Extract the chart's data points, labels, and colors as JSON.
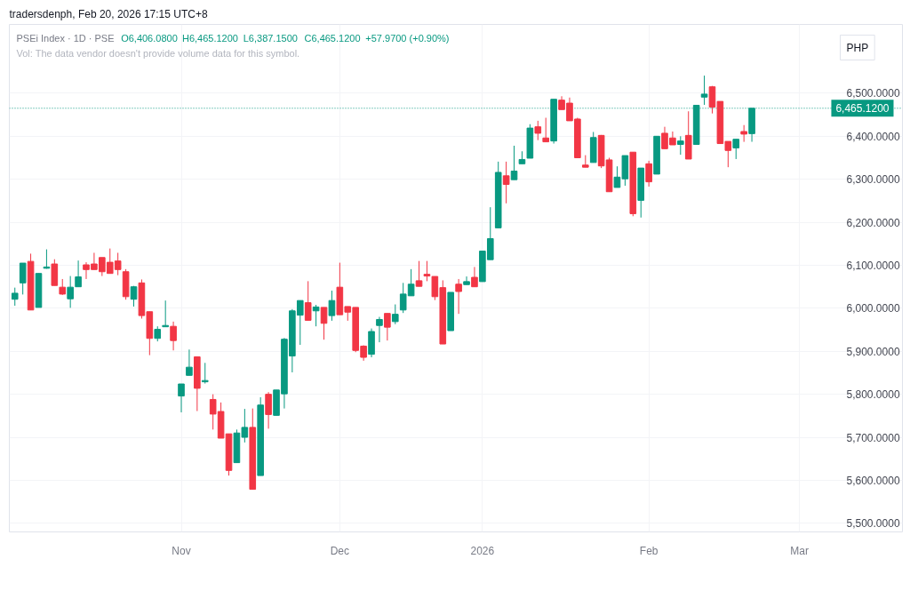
{
  "chart_data": {
    "type": "candlestick",
    "title": "PSEi Index · 1D · PSE",
    "subtitle": "Vol: The data vendor doesn't provide volume data for this symbol.",
    "ylabel": "PHP",
    "annotations": [
      "tradersdenph, Feb 20, 2026 17:15 UTC+8",
      "O6,406.0800",
      "H6,465.1200",
      "L6,387.1500",
      "C6,465.1200",
      "+57.9700 (+0.90%)"
    ],
    "categories": [
      null,
      null,
      null,
      null,
      null,
      null,
      null,
      null,
      null,
      null,
      null,
      null,
      null,
      null,
      null,
      null,
      null,
      null,
      null,
      null,
      null,
      "Nov",
      null,
      null,
      null,
      null,
      null,
      null,
      null,
      null,
      null,
      null,
      null,
      null,
      null,
      null,
      null,
      null,
      null,
      null,
      null,
      "Dec",
      null,
      null,
      null,
      null,
      null,
      null,
      null,
      null,
      null,
      null,
      null,
      null,
      null,
      null,
      null,
      null,
      null,
      "2026",
      null,
      null,
      null,
      null,
      null,
      null,
      null,
      null,
      null,
      null,
      null,
      null,
      null,
      null,
      null,
      null,
      null,
      null,
      null,
      null,
      "Feb",
      null,
      null,
      null,
      null,
      null,
      null,
      null,
      null,
      null,
      null,
      null,
      null,
      null,
      null,
      null,
      null,
      null,
      null,
      "Mar"
    ],
    "ohlc": [
      [
        6021,
        6048,
        6006,
        6035
      ],
      [
        6059,
        6105,
        6032,
        6105
      ],
      [
        6109,
        6127,
        5996,
        5996
      ],
      [
        6002,
        6081,
        6002,
        6081
      ],
      [
        6093,
        6137,
        6092,
        6096
      ],
      [
        6103,
        6114,
        6053,
        6053
      ],
      [
        6049,
        6068,
        6031,
        6033
      ],
      [
        6022,
        6075,
        6001,
        6049
      ],
      [
        6050,
        6111,
        6050,
        6073
      ],
      [
        6101,
        6107,
        6068,
        6090
      ],
      [
        6103,
        6129,
        6090,
        6090
      ],
      [
        6118,
        6118,
        6075,
        6085
      ],
      [
        6107,
        6139,
        6081,
        6081
      ],
      [
        6110,
        6129,
        6077,
        6090
      ],
      [
        6085,
        6091,
        6020,
        6027
      ],
      [
        6021,
        6052,
        6004,
        6050
      ],
      [
        6059,
        6067,
        5976,
        5983
      ],
      [
        5992,
        5992,
        5891,
        5930
      ],
      [
        5930,
        5958,
        5923,
        5951
      ],
      [
        5957,
        6018,
        5957,
        5960
      ],
      [
        5958,
        5969,
        5902,
        5925
      ],
      [
        5796,
        5824,
        5758,
        5824
      ],
      [
        5844,
        5904,
        5844,
        5863
      ],
      [
        5887,
        5887,
        5761,
        5814
      ],
      [
        5829,
        5873,
        5825,
        5832
      ],
      [
        5788,
        5800,
        5718,
        5754
      ],
      [
        5760,
        5781,
        5698,
        5698
      ],
      [
        5708,
        5708,
        5611,
        5623
      ],
      [
        5641,
        5718,
        5641,
        5710
      ],
      [
        5700,
        5766,
        5688,
        5723
      ],
      [
        5723,
        5767,
        5579,
        5579
      ],
      [
        5611,
        5793,
        5611,
        5775
      ],
      [
        5800,
        5805,
        5720,
        5753
      ],
      [
        5751,
        5810,
        5751,
        5810
      ],
      [
        5801,
        5931,
        5767,
        5928
      ],
      [
        5889,
        5998,
        5851,
        5994
      ],
      [
        5984,
        6018,
        5915,
        6018
      ],
      [
        6013,
        6063,
        5972,
        5972
      ],
      [
        5994,
        6008,
        5958,
        6003
      ],
      [
        6002,
        6002,
        5927,
        5965
      ],
      [
        5983,
        6041,
        5971,
        6018
      ],
      [
        6049,
        6106,
        5985,
        5985
      ],
      [
        6004,
        6004,
        5971,
        5991
      ],
      [
        6002,
        6002,
        5898,
        5902
      ],
      [
        5912,
        5914,
        5878,
        5886
      ],
      [
        5893,
        5953,
        5886,
        5946
      ],
      [
        5960,
        5980,
        5921,
        5974
      ],
      [
        5988,
        5988,
        5925,
        5956
      ],
      [
        5969,
        6009,
        5963,
        5986
      ],
      [
        5996,
        6059,
        5989,
        6033
      ],
      [
        6029,
        6091,
        6029,
        6056
      ],
      [
        6064,
        6110,
        6051,
        6051
      ],
      [
        6079,
        6110,
        6063,
        6075
      ],
      [
        6074,
        6074,
        6019,
        6027
      ],
      [
        6048,
        6065,
        5917,
        5917
      ],
      [
        5948,
        6037,
        5948,
        6037
      ],
      [
        6056,
        6068,
        5987,
        6039
      ],
      [
        6055,
        6074,
        6055,
        6062
      ],
      [
        6072,
        6096,
        6050,
        6050
      ],
      [
        6062,
        6134,
        6062,
        6133
      ],
      [
        6113,
        6235,
        6113,
        6162
      ],
      [
        6187,
        6341,
        6187,
        6316
      ],
      [
        6308,
        6341,
        6244,
        6288
      ],
      [
        6299,
        6378,
        6299,
        6319
      ],
      [
        6336,
        6365,
        6336,
        6346
      ],
      [
        6349,
        6428,
        6349,
        6419
      ],
      [
        6422,
        6436,
        6391,
        6407
      ],
      [
        6396,
        6443,
        6387,
        6387
      ],
      [
        6389,
        6486,
        6383,
        6486
      ],
      [
        6484,
        6493,
        6462,
        6462
      ],
      [
        6477,
        6490,
        6436,
        6436
      ],
      [
        6440,
        6443,
        6350,
        6350
      ],
      [
        6333,
        6356,
        6328,
        6328
      ],
      [
        6339,
        6410,
        6339,
        6397
      ],
      [
        6402,
        6403,
        6326,
        6331
      ],
      [
        6345,
        6350,
        6271,
        6271
      ],
      [
        6281,
        6330,
        6281,
        6305
      ],
      [
        6301,
        6355,
        6285,
        6355
      ],
      [
        6363,
        6363,
        6214,
        6220
      ],
      [
        6251,
        6326,
        6211,
        6326
      ],
      [
        6336,
        6343,
        6283,
        6294
      ],
      [
        6312,
        6400,
        6312,
        6400
      ],
      [
        6407,
        6422,
        6371,
        6371
      ],
      [
        6396,
        6411,
        6380,
        6380
      ],
      [
        6381,
        6400,
        6357,
        6389
      ],
      [
        6402,
        6458,
        6347,
        6347
      ],
      [
        6381,
        6472,
        6381,
        6472
      ],
      [
        6491,
        6541,
        6473,
        6498
      ],
      [
        6515,
        6517,
        6453,
        6468
      ],
      [
        6481,
        6481,
        6383,
        6383
      ],
      [
        6388,
        6388,
        6328,
        6367
      ],
      [
        6373,
        6393,
        6347,
        6393
      ],
      [
        6411,
        6426,
        6387,
        6405
      ],
      [
        6406.08,
        6465.12,
        6387.15,
        6465.12
      ],
      null,
      null,
      null,
      null,
      null,
      null
    ],
    "colors": [
      "#089981",
      "#089981",
      "#f23645",
      "#089981",
      "#089981",
      "#f23645",
      "#f23645",
      "#089981",
      "#089981",
      "#f23645",
      "#f23645",
      "#f23645",
      "#f23645",
      "#f23645",
      "#f23645",
      "#089981",
      "#f23645",
      "#f23645",
      "#089981",
      "#089981",
      "#f23645",
      "#089981",
      "#089981",
      "#f23645",
      "#089981",
      "#f23645",
      "#f23645",
      "#f23645",
      "#089981",
      "#089981",
      "#f23645",
      "#089981",
      "#f23645",
      "#089981",
      "#089981",
      "#089981",
      "#089981",
      "#f23645",
      "#089981",
      "#f23645",
      "#089981",
      "#f23645",
      "#f23645",
      "#f23645",
      "#f23645",
      "#089981",
      "#089981",
      "#f23645",
      "#089981",
      "#089981",
      "#089981",
      "#f23645",
      "#f23645",
      "#f23645",
      "#f23645",
      "#089981",
      "#f23645",
      "#089981",
      "#f23645",
      "#089981",
      "#089981",
      "#089981",
      "#f23645",
      "#089981",
      "#089981",
      "#089981",
      "#f23645",
      "#f23645",
      "#089981",
      "#f23645",
      "#f23645",
      "#f23645",
      "#f23645",
      "#089981",
      "#f23645",
      "#f23645",
      "#089981",
      "#089981",
      "#f23645",
      "#089981",
      "#f23645",
      "#089981",
      "#f23645",
      "#f23645",
      "#089981",
      "#f23645",
      "#089981",
      "#089981",
      "#f23645",
      "#f23645",
      "#f23645",
      "#089981",
      "#f23645",
      "#089981",
      null,
      null,
      null,
      null,
      null,
      null
    ],
    "ylim": [
      5480,
      6660
    ],
    "yticks": [
      {
        "value": 5500,
        "label": "5,500.0000"
      },
      {
        "value": 5600,
        "label": "5,600.0000"
      },
      {
        "value": 5700,
        "label": "5,700.0000"
      },
      {
        "value": 5800,
        "label": "5,800.0000"
      },
      {
        "value": 5900,
        "label": "5,900.0000"
      },
      {
        "value": 6000,
        "label": "6,000.0000"
      },
      {
        "value": 6100,
        "label": "6,100.0000"
      },
      {
        "value": 6200,
        "label": "6,200.0000"
      },
      {
        "value": 6300,
        "label": "6,300.0000"
      },
      {
        "value": 6400,
        "label": "6,400.0000"
      },
      {
        "value": 6500,
        "label": "6,500.0000"
      }
    ],
    "ref_lines": [
      {
        "axis": "y",
        "value": 6465.12,
        "label": "6,465.1200",
        "color": "#089981",
        "line_style": "dotted"
      }
    ],
    "grid": true
  }
}
